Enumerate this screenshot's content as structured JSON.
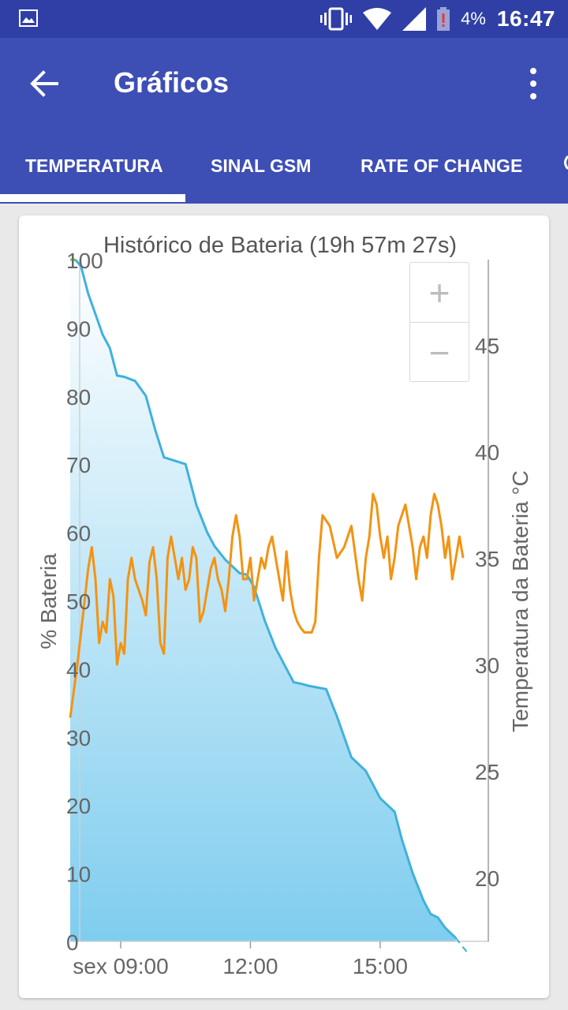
{
  "status_bar": {
    "battery_percent": "4%",
    "time": "16:47",
    "icons": [
      "gallery-icon",
      "vibrate-icon",
      "wifi-icon",
      "signal-icon",
      "battery-alert-icon"
    ]
  },
  "app_bar": {
    "title": "Gráficos",
    "icons": [
      "back-arrow-icon",
      "more-vert-icon"
    ]
  },
  "tabs": [
    {
      "label": "TEMPERATURA",
      "active": true
    },
    {
      "label": "SINAL GSM",
      "active": false
    },
    {
      "label": "RATE OF CHANGE",
      "active": false
    }
  ],
  "zoom_controls": {
    "zoom_in": "+",
    "zoom_out": "−"
  },
  "colors": {
    "status_bar": "#2f3fa5",
    "app_bar": "#3d4fb5",
    "battery_line": "#3fb1de",
    "battery_fill": "#7fcdef",
    "temperature_line": "#f39312"
  },
  "chart_data": {
    "type": "line",
    "title": "Histórico de Bateria (19h 57m 27s)",
    "ylabel": "% Bateria",
    "ylabel_right": "Temperatura da Bateria °C",
    "xlabel": "",
    "x_ticks": [
      "sex 09:00",
      "12:00",
      "15:00"
    ],
    "y_ticks": [
      "0",
      "10",
      "20",
      "30",
      "40",
      "50",
      "60",
      "70",
      "80",
      "90",
      "100"
    ],
    "y_right_ticks": [
      "20",
      "25",
      "30",
      "35",
      "40",
      "45"
    ],
    "ylim": [
      0,
      100
    ],
    "ylim_right": [
      17,
      49
    ],
    "xlim": [
      "07:50",
      "17:30"
    ],
    "grid": false,
    "series": [
      {
        "axis": "left",
        "style": "area",
        "x": [
          "07:50",
          "07:58",
          "08:05",
          "08:15",
          "08:25",
          "08:35",
          "08:45",
          "08:55",
          "09:05",
          "09:20",
          "09:35",
          "09:48",
          "10:00",
          "10:15",
          "10:30",
          "10:45",
          "11:00",
          "11:10",
          "11:25",
          "11:35",
          "11:45",
          "11:55",
          "12:05",
          "12:20",
          "12:35",
          "12:40",
          "12:50",
          "13:00",
          "13:10",
          "13:20",
          "13:35",
          "13:45",
          "14:00",
          "14:20",
          "14:40",
          "14:50",
          "15:00",
          "15:10",
          "15:20",
          "15:30",
          "15:45",
          "16:00",
          "16:10",
          "16:20",
          "16:30",
          "16:40",
          "16:45",
          "16:52",
          "17:00"
        ],
        "values": [
          100,
          99.9,
          99,
          95,
          92,
          89,
          87,
          83,
          82.8,
          82.2,
          80,
          75,
          71,
          70.5,
          70,
          64,
          60,
          58,
          56,
          55,
          54,
          53.8,
          52,
          47,
          43,
          42,
          40,
          38,
          37.8,
          37.5,
          37.2,
          37,
          33,
          27,
          25,
          23,
          21,
          20,
          19,
          15,
          10,
          6,
          4,
          3.5,
          2,
          1,
          0.5,
          -0.5,
          -1.5
        ]
      },
      {
        "axis": "right",
        "style": "line",
        "x": [
          "07:50",
          "08:00",
          "08:10",
          "08:15",
          "08:20",
          "08:25",
          "08:30",
          "08:35",
          "08:40",
          "08:45",
          "08:50",
          "08:55",
          "09:00",
          "09:05",
          "09:10",
          "09:15",
          "09:20",
          "09:25",
          "09:30",
          "09:35",
          "09:40",
          "09:45",
          "09:50",
          "09:55",
          "10:00",
          "10:05",
          "10:10",
          "10:15",
          "10:20",
          "10:25",
          "10:30",
          "10:35",
          "10:40",
          "10:45",
          "10:50",
          "10:55",
          "11:00",
          "11:05",
          "11:10",
          "11:15",
          "11:20",
          "11:25",
          "11:30",
          "11:35",
          "11:40",
          "11:45",
          "11:50",
          "11:55",
          "12:00",
          "12:05",
          "12:10",
          "12:15",
          "12:20",
          "12:25",
          "12:30",
          "12:35",
          "12:40",
          "12:45",
          "12:50",
          "12:55",
          "13:00",
          "13:05",
          "13:10",
          "13:15",
          "13:20",
          "13:25",
          "13:30",
          "13:35",
          "13:40",
          "13:50",
          "14:00",
          "14:10",
          "14:20",
          "14:30",
          "14:35",
          "14:40",
          "14:45",
          "14:50",
          "14:55",
          "15:00",
          "15:05",
          "15:10",
          "15:15",
          "15:20",
          "15:25",
          "15:30",
          "15:35",
          "15:40",
          "15:45",
          "15:50",
          "15:55",
          "16:00",
          "16:05",
          "16:10",
          "16:15",
          "16:20",
          "16:25",
          "16:30",
          "16:35",
          "16:40",
          "16:45",
          "16:50",
          "16:55"
        ],
        "values": [
          27.5,
          30,
          33,
          34.5,
          35.5,
          34,
          31,
          32,
          31.5,
          34,
          33.2,
          30,
          31,
          30.5,
          34,
          35,
          34,
          33.5,
          33,
          32.3,
          34.8,
          35.5,
          34,
          31,
          30.5,
          35,
          36,
          35,
          34,
          35,
          33.5,
          34,
          35.5,
          35,
          32,
          32.5,
          33.5,
          34.5,
          35,
          34,
          33.5,
          32.5,
          34,
          36,
          37,
          36,
          34,
          34,
          35,
          33,
          34,
          35,
          34.5,
          35.5,
          36,
          35,
          34,
          33,
          35.3,
          33.5,
          32.5,
          32,
          31.7,
          31.5,
          31.5,
          31.5,
          32,
          35,
          37,
          36.5,
          35,
          35.5,
          36.5,
          34,
          33,
          35,
          36,
          38,
          37.5,
          36,
          35,
          36,
          34,
          35,
          36.5,
          37,
          37.5,
          36.5,
          35.5,
          34,
          35.5,
          36,
          35,
          37,
          38,
          37.5,
          36.5,
          35,
          36,
          34,
          35,
          36,
          35
        ]
      },
      {
        "axis": "left",
        "style": "line",
        "x": [
          "07:50",
          "07:57"
        ],
        "values": [
          100,
          100
        ]
      }
    ]
  }
}
